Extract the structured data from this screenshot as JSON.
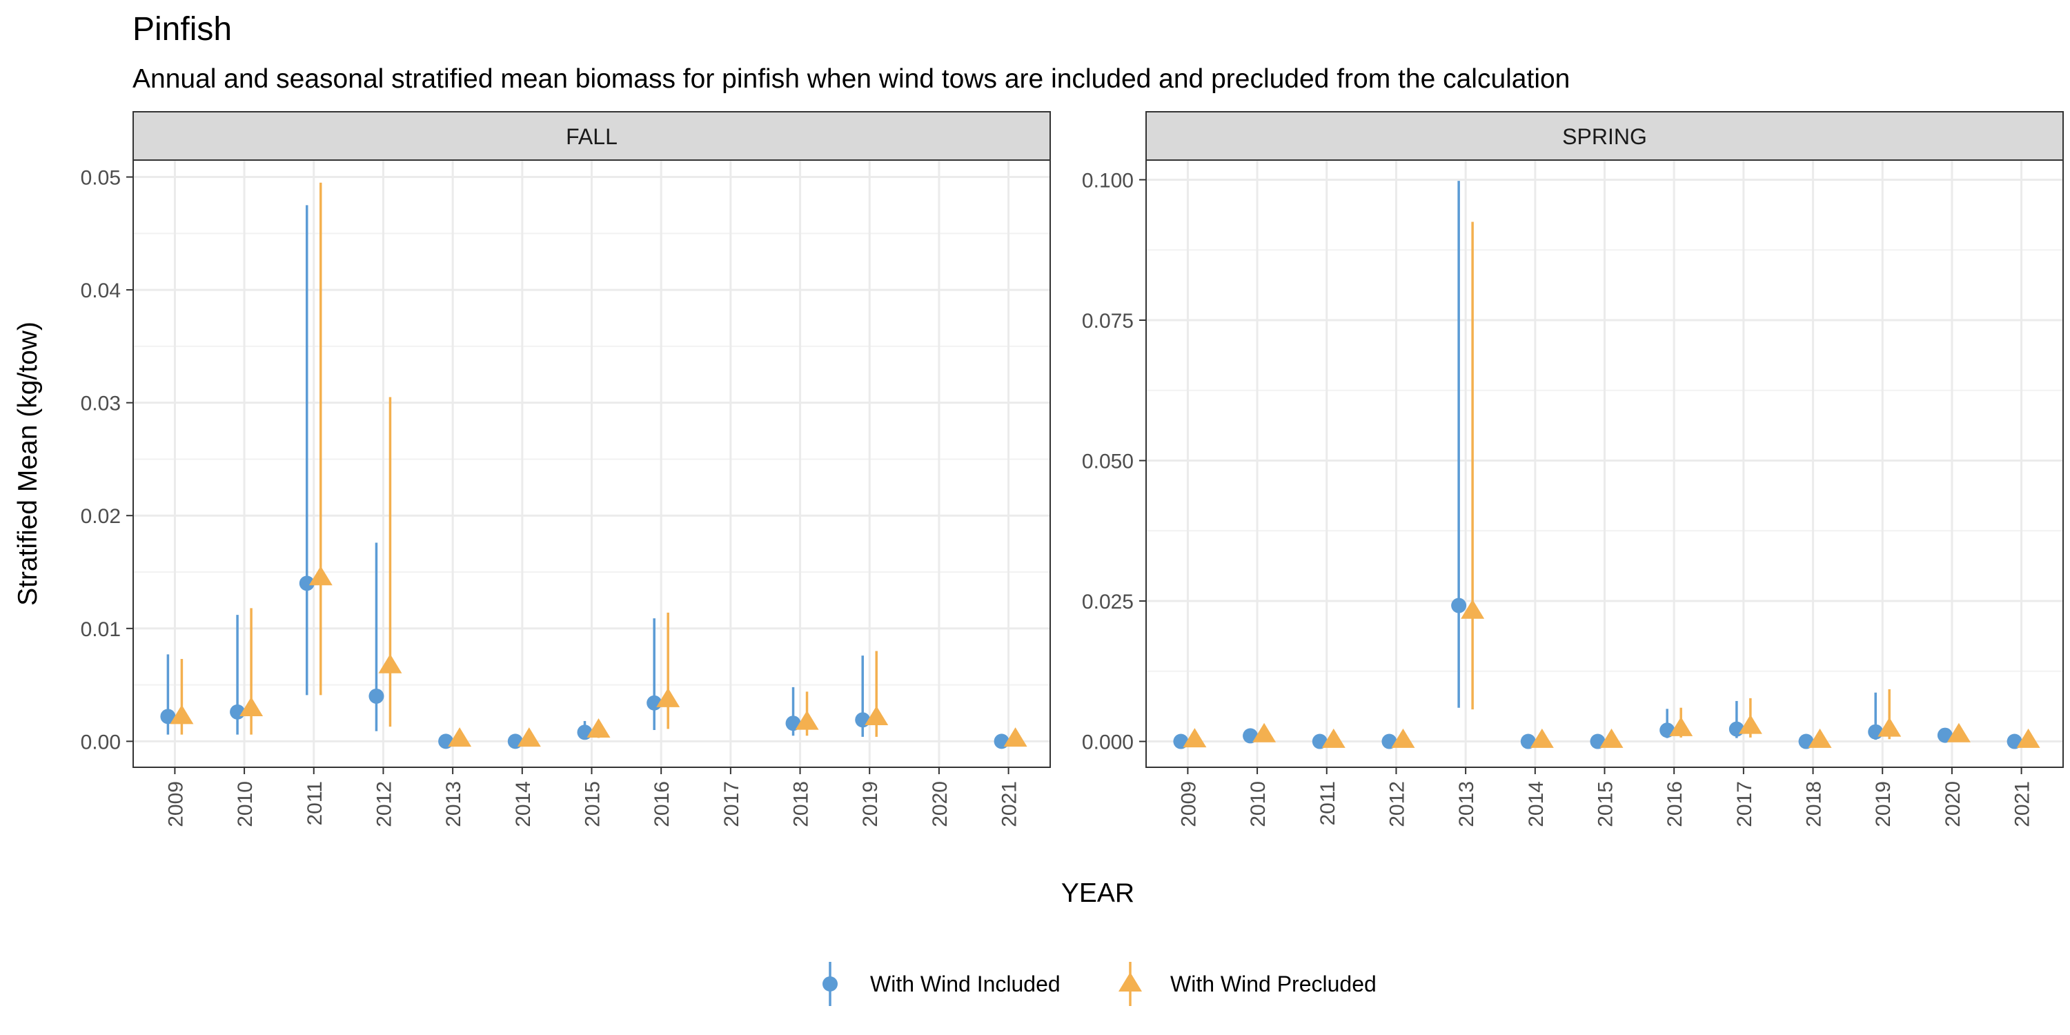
{
  "title": "Pinfish",
  "subtitle": "Annual and seasonal stratified mean biomass for pinfish when wind tows are included and precluded from the calculation",
  "xlabel": "YEAR",
  "ylabel": "Stratified Mean (kg/tow)",
  "legend": {
    "position": "bottom",
    "items": [
      {
        "label": "With Wind Included",
        "color": "#5b9bd5",
        "shape": "circle"
      },
      {
        "label": "With Wind Precluded",
        "color": "#f4b04f",
        "shape": "triangle"
      }
    ]
  },
  "chart_data": [
    {
      "type": "scatter",
      "panel": "FALL",
      "x": [
        "2009",
        "2010",
        "2011",
        "2012",
        "2013",
        "2014",
        "2015",
        "2016",
        "2017",
        "2018",
        "2019",
        "2020",
        "2021"
      ],
      "ylim": [
        -0.0023,
        0.0515
      ],
      "yticks": [
        "0.00",
        "0.01",
        "0.02",
        "0.03",
        "0.04",
        "0.05"
      ],
      "ytick_values": [
        0,
        0.01,
        0.02,
        0.03,
        0.04,
        0.05
      ],
      "grid": true,
      "series": [
        {
          "name": "With Wind Included",
          "color": "#5b9bd5",
          "points": [
            {
              "x": "2009",
              "y": 0.0022,
              "lo": 0.0006,
              "hi": 0.0077
            },
            {
              "x": "2010",
              "y": 0.0026,
              "lo": 0.0006,
              "hi": 0.0112
            },
            {
              "x": "2011",
              "y": 0.014,
              "lo": 0.0041,
              "hi": 0.0475
            },
            {
              "x": "2012",
              "y": 0.004,
              "lo": 0.0009,
              "hi": 0.0176
            },
            {
              "x": "2013",
              "y": 0.0,
              "lo": 0.0,
              "hi": 0.0
            },
            {
              "x": "2014",
              "y": 0.0,
              "lo": 0.0,
              "hi": 0.0
            },
            {
              "x": "2015",
              "y": 0.0008,
              "lo": 0.0002,
              "hi": 0.0018
            },
            {
              "x": "2016",
              "y": 0.0034,
              "lo": 0.001,
              "hi": 0.0109
            },
            {
              "x": "2018",
              "y": 0.0016,
              "lo": 0.0005,
              "hi": 0.0048
            },
            {
              "x": "2019",
              "y": 0.0019,
              "lo": 0.0004,
              "hi": 0.0076
            },
            {
              "x": "2021",
              "y": 0.0,
              "lo": 0.0,
              "hi": 0.0
            }
          ]
        },
        {
          "name": "With Wind Precluded",
          "color": "#f4b04f",
          "points": [
            {
              "x": "2009",
              "y": 0.0022,
              "lo": 0.0006,
              "hi": 0.0073
            },
            {
              "x": "2010",
              "y": 0.0029,
              "lo": 0.0006,
              "hi": 0.0118
            },
            {
              "x": "2011",
              "y": 0.0145,
              "lo": 0.0041,
              "hi": 0.0495
            },
            {
              "x": "2012",
              "y": 0.0067,
              "lo": 0.0013,
              "hi": 0.0305
            },
            {
              "x": "2013",
              "y": 0.0002,
              "lo": 0.0,
              "hi": 0.0003
            },
            {
              "x": "2014",
              "y": 0.0002,
              "lo": 0.0,
              "hi": 0.0003
            },
            {
              "x": "2015",
              "y": 0.001,
              "lo": 0.0003,
              "hi": 0.0016
            },
            {
              "x": "2016",
              "y": 0.0037,
              "lo": 0.0011,
              "hi": 0.0114
            },
            {
              "x": "2018",
              "y": 0.0017,
              "lo": 0.0005,
              "hi": 0.0044
            },
            {
              "x": "2019",
              "y": 0.0021,
              "lo": 0.0004,
              "hi": 0.008
            },
            {
              "x": "2021",
              "y": 0.0002,
              "lo": 0.0,
              "hi": 0.0003
            }
          ]
        }
      ]
    },
    {
      "type": "scatter",
      "panel": "SPRING",
      "x": [
        "2009",
        "2010",
        "2011",
        "2012",
        "2013",
        "2014",
        "2015",
        "2016",
        "2017",
        "2018",
        "2019",
        "2020",
        "2021"
      ],
      "ylim": [
        -0.0046,
        0.1035
      ],
      "yticks": [
        "0.000",
        "0.025",
        "0.050",
        "0.075",
        "0.100"
      ],
      "ytick_values": [
        0,
        0.025,
        0.05,
        0.075,
        0.1
      ],
      "grid": true,
      "series": [
        {
          "name": "With Wind Included",
          "color": "#5b9bd5",
          "points": [
            {
              "x": "2009",
              "y": 0.0,
              "lo": 0.0,
              "hi": 0.0
            },
            {
              "x": "2010",
              "y": 0.001,
              "lo": 0.0004,
              "hi": 0.0017
            },
            {
              "x": "2011",
              "y": 0.0,
              "lo": 0.0,
              "hi": 0.0
            },
            {
              "x": "2012",
              "y": 0.0,
              "lo": 0.0,
              "hi": 0.0
            },
            {
              "x": "2013",
              "y": 0.0242,
              "lo": 0.006,
              "hi": 0.0998
            },
            {
              "x": "2014",
              "y": 0.0,
              "lo": 0.0,
              "hi": 0.0
            },
            {
              "x": "2015",
              "y": 0.0,
              "lo": 0.0,
              "hi": 0.0
            },
            {
              "x": "2016",
              "y": 0.002,
              "lo": 0.0006,
              "hi": 0.0058
            },
            {
              "x": "2017",
              "y": 0.0022,
              "lo": 0.0006,
              "hi": 0.0072
            },
            {
              "x": "2018",
              "y": 0.0,
              "lo": 0.0,
              "hi": 0.0
            },
            {
              "x": "2019",
              "y": 0.0017,
              "lo": 0.0003,
              "hi": 0.0087
            },
            {
              "x": "2020",
              "y": 0.0011,
              "lo": 0.0004,
              "hi": 0.0016
            },
            {
              "x": "2021",
              "y": 0.0,
              "lo": 0.0,
              "hi": 0.0
            }
          ]
        },
        {
          "name": "With Wind Precluded",
          "color": "#f4b04f",
          "points": [
            {
              "x": "2009",
              "y": 0.0003,
              "lo": 0.0,
              "hi": 0.0004
            },
            {
              "x": "2010",
              "y": 0.0012,
              "lo": 0.0004,
              "hi": 0.0018
            },
            {
              "x": "2011",
              "y": 0.0002,
              "lo": 0.0,
              "hi": 0.0003
            },
            {
              "x": "2012",
              "y": 0.0002,
              "lo": 0.0,
              "hi": 0.0003
            },
            {
              "x": "2013",
              "y": 0.0232,
              "lo": 0.0057,
              "hi": 0.0925
            },
            {
              "x": "2014",
              "y": 0.0002,
              "lo": 0.0,
              "hi": 0.0003
            },
            {
              "x": "2015",
              "y": 0.0002,
              "lo": 0.0,
              "hi": 0.0003
            },
            {
              "x": "2016",
              "y": 0.0023,
              "lo": 0.0007,
              "hi": 0.006
            },
            {
              "x": "2017",
              "y": 0.0027,
              "lo": 0.0007,
              "hi": 0.0077
            },
            {
              "x": "2018",
              "y": 0.0002,
              "lo": 0.0,
              "hi": 0.0003
            },
            {
              "x": "2019",
              "y": 0.0022,
              "lo": 0.0004,
              "hi": 0.0093
            },
            {
              "x": "2020",
              "y": 0.0012,
              "lo": 0.0004,
              "hi": 0.0017
            },
            {
              "x": "2021",
              "y": 0.0002,
              "lo": 0.0,
              "hi": 0.0003
            }
          ]
        }
      ]
    }
  ]
}
